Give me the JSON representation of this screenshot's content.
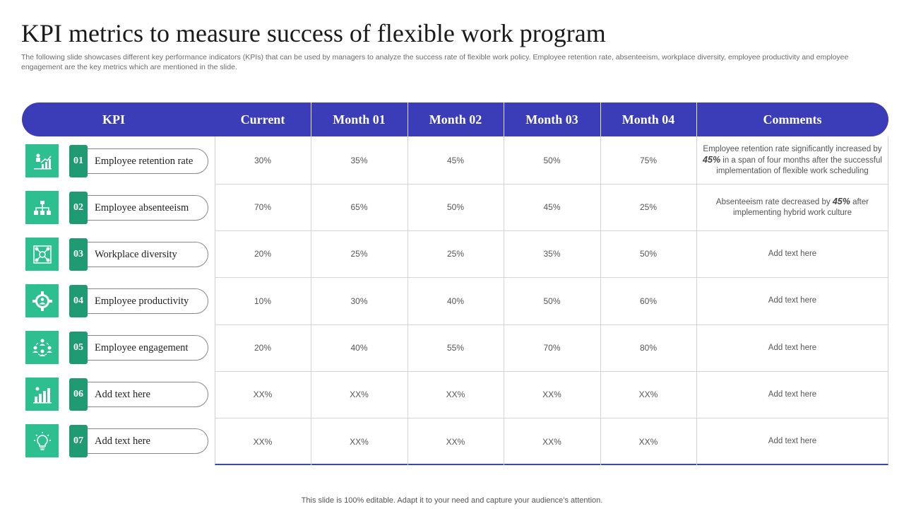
{
  "title": "KPI metrics to measure success of flexible work program",
  "subtitle": "The following slide showcases different key performance indicators (KPIs) that can be used by managers to analyze the success rate of flexible work policy. Employee retention rate, absenteeism, workplace diversity, employee productivity and employee engagement are the key metrics which are mentioned in the slide.",
  "headers": {
    "kpi": "KPI",
    "current": "Current",
    "month1": "Month 01",
    "month2": "Month 02",
    "month3": "Month 03",
    "month4": "Month 04",
    "comments": "Comments"
  },
  "rows": [
    {
      "num": "01",
      "kpi": "Employee retention rate",
      "icon": "growth-chart-icon",
      "current": "30%",
      "month1": "35%",
      "month2": "45%",
      "month3": "50%",
      "month4": "75%",
      "comment": {
        "pre": "Employee retention rate significantly increased by",
        "highlight": "45%",
        "post": "in a span of four months after the successful implementation of flexible work scheduling"
      }
    },
    {
      "num": "02",
      "kpi": "Employee absenteeism",
      "icon": "hierarchy-icon",
      "current": "70%",
      "month1": "65%",
      "month2": "50%",
      "month3": "45%",
      "month4": "25%",
      "comment": {
        "pre": "Absenteeism rate decreased by",
        "highlight": "45%",
        "post": "after implementing hybrid work culture"
      }
    },
    {
      "num": "03",
      "kpi": "Workplace diversity",
      "icon": "network-icon",
      "current": "20%",
      "month1": "25%",
      "month2": "25%",
      "month3": "35%",
      "month4": "50%",
      "comment": {
        "text": "Add text here"
      }
    },
    {
      "num": "04",
      "kpi": "Employee productivity",
      "icon": "gear-person-icon",
      "current": "10%",
      "month1": "30%",
      "month2": "40%",
      "month3": "50%",
      "month4": "60%",
      "comment": {
        "text": "Add text here"
      }
    },
    {
      "num": "05",
      "kpi": "Employee engagement",
      "icon": "team-icon",
      "current": "20%",
      "month1": "40%",
      "month2": "55%",
      "month3": "70%",
      "month4": "80%",
      "comment": {
        "text": "Add text here"
      }
    },
    {
      "num": "06",
      "kpi": "Add text here",
      "icon": "bar-chart-icon",
      "current": "XX%",
      "month1": "XX%",
      "month2": "XX%",
      "month3": "XX%",
      "month4": "XX%",
      "comment": {
        "text": "Add text here"
      }
    },
    {
      "num": "07",
      "kpi": "Add text here",
      "icon": "lightbulb-icon",
      "current": "XX%",
      "month1": "XX%",
      "month2": "XX%",
      "month3": "XX%",
      "month4": "XX%",
      "comment": {
        "text": "Add text here"
      }
    }
  ],
  "footer": "This slide is 100% editable. Adapt it to your need and capture your audience’s attention.",
  "colors": {
    "header": "#3b3db8",
    "icon_bg": "#2dbf8f",
    "number_bg": "#1f9a72"
  }
}
